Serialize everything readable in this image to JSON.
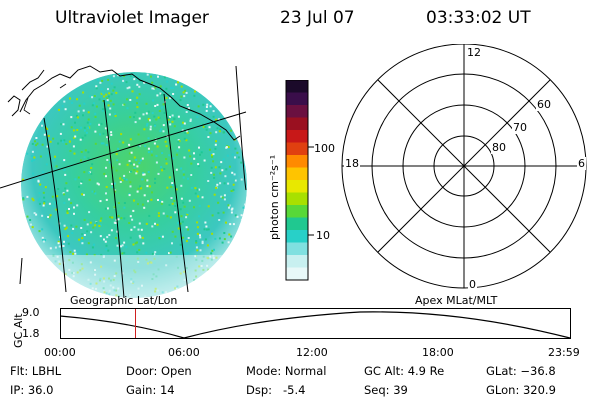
{
  "header": {
    "instrument": "Ultraviolet Imager",
    "date": "23 Jul 07",
    "time": "03:33:02 UT"
  },
  "colorbar": {
    "unit_label": "photon cm⁻²s⁻¹",
    "ticks": [
      "100",
      "10"
    ],
    "colors": [
      "#1b0a2a",
      "#3a0e4a",
      "#6a1040",
      "#9a1020",
      "#c81818",
      "#e04010",
      "#ff8a00",
      "#ffc400",
      "#e8e800",
      "#a8e000",
      "#58d838",
      "#20c890",
      "#28d0c8",
      "#80e0e0",
      "#c8f0f0",
      "#e8f8f8"
    ]
  },
  "left_panel": {
    "caption": "Geographic Lat/Lon"
  },
  "polar_plot": {
    "caption": "Apex MLat/MLT",
    "mlt_labels": {
      "top": "12",
      "right": "6",
      "bottom": "0",
      "left": "18"
    },
    "lat_labels": [
      "60",
      "70",
      "80"
    ]
  },
  "altitude_plot": {
    "ylabel": "GC Alt",
    "ytick_top": "9.0",
    "ytick_bottom": "1.8",
    "xticks": [
      "00:00",
      "06:00",
      "12:00",
      "18:00",
      "23:59"
    ],
    "current_marker_time": "03:33"
  },
  "footer": {
    "flt": "Flt: LBHL",
    "ip": "IP: 36.0",
    "door": "Door: Open",
    "gain": "Gain: 14",
    "mode": "Mode: Normal",
    "dsp": "Dsp:   -5.4",
    "gc_alt": "GC Alt: 4.9 Re",
    "seq": "Seq: 39",
    "glat": "GLat: −36.8",
    "glon": "GLon: 320.9"
  }
}
